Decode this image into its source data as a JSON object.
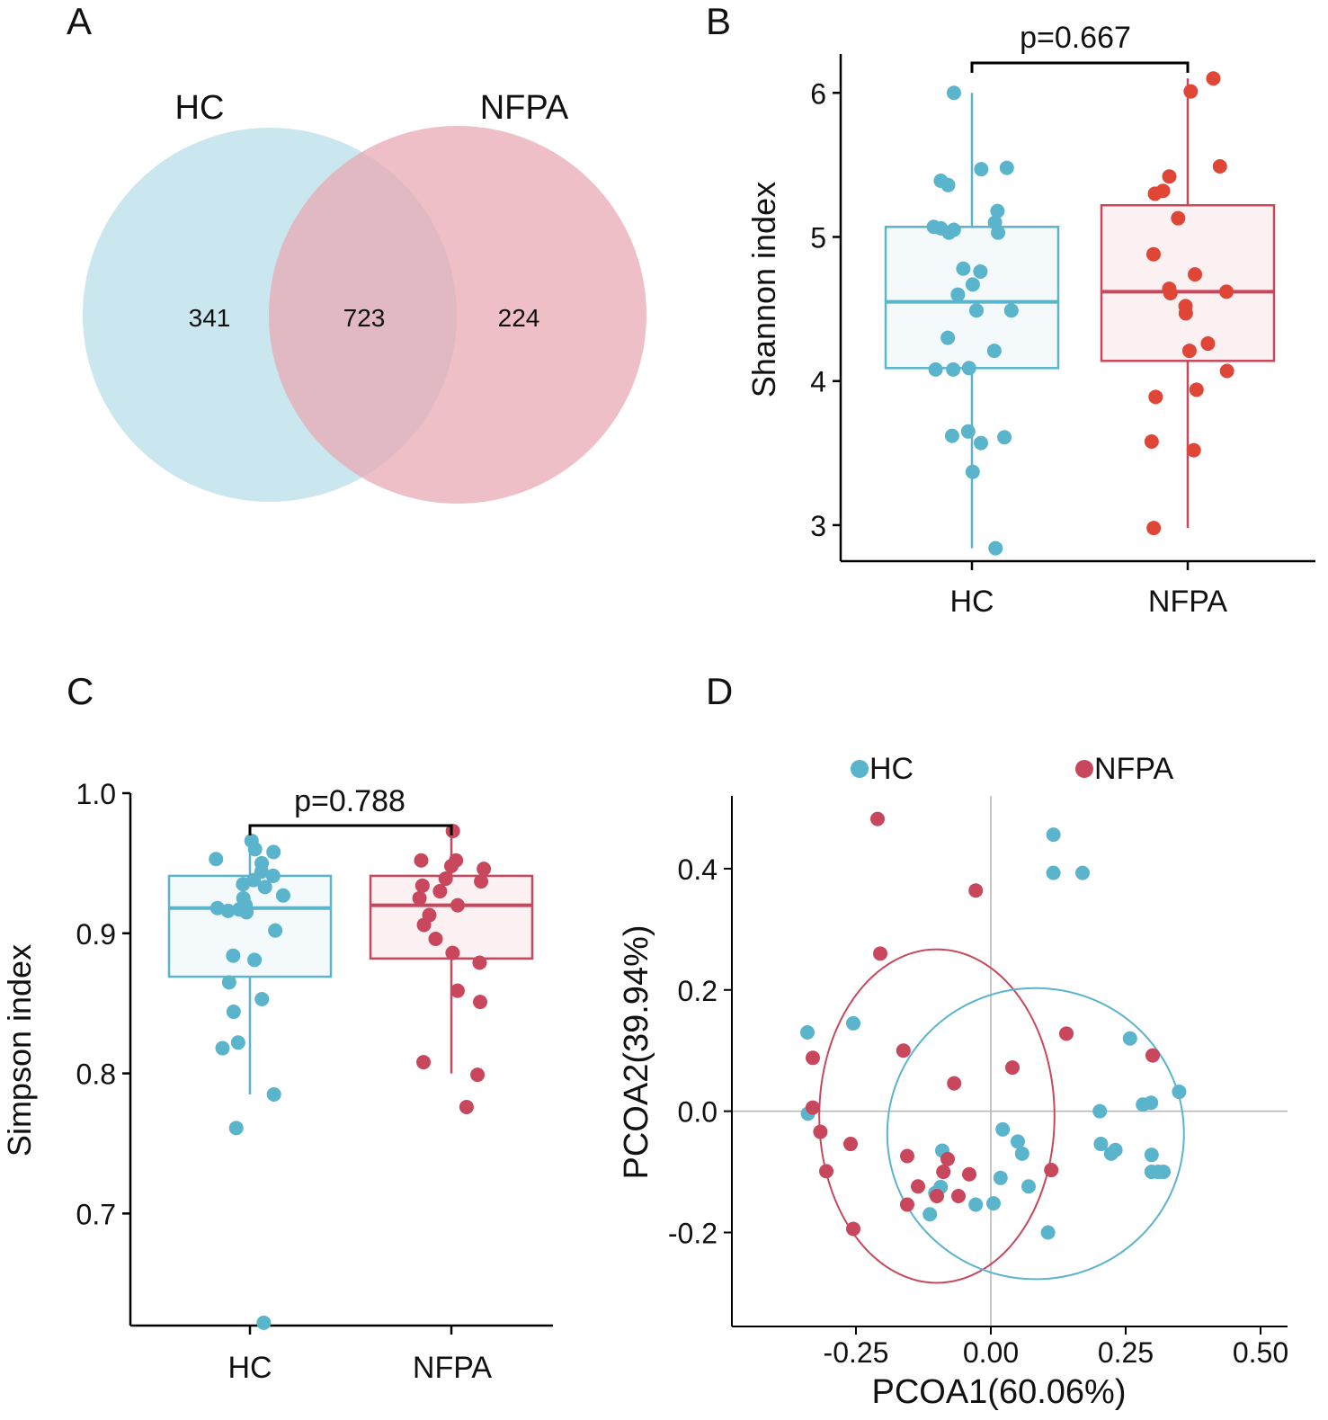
{
  "colors": {
    "hc": "#5ab4cb",
    "hc_fill": "#add8e6",
    "nfpa": "#c8475c",
    "nfpa_dot": "#e04636",
    "nfpa_fill": "#e8a9b3",
    "box_fill_hc": "#f4f9fb",
    "box_fill_nfpa": "#fbf1f2",
    "axis": "#000000",
    "refline": "#b3b3b3"
  },
  "chart_data": [
    {
      "panel": "A",
      "type": "venn",
      "sets": [
        "HC",
        "NFPA"
      ],
      "regions": {
        "HC_only": "341",
        "intersection": "723",
        "NFPA_only": "224"
      }
    },
    {
      "panel": "B",
      "type": "boxplot",
      "categories": [
        "HC",
        "NFPA"
      ],
      "ylabel": "Shannon index",
      "xlabel": "",
      "ylim": [
        2.75,
        6.27
      ],
      "yticks": [
        3,
        4,
        5,
        6
      ],
      "significance": "p=0.667",
      "boxes": [
        {
          "q1": 4.09,
          "median": 4.55,
          "q3": 5.07,
          "min": 2.84,
          "max": 6.0
        },
        {
          "q1": 4.14,
          "median": 4.62,
          "q3": 5.22,
          "min": 2.98,
          "max": 6.1
        }
      ],
      "points": [
        [
          6.0,
          5.48,
          5.47,
          5.39,
          5.36,
          5.18,
          5.1,
          5.07,
          5.06,
          5.05,
          5.03,
          5.03,
          4.78,
          4.76,
          4.67,
          4.6,
          4.49,
          4.49,
          4.3,
          4.21,
          4.09,
          4.08,
          4.08,
          3.65,
          3.62,
          3.61,
          3.57,
          3.37,
          2.84
        ],
        [
          6.1,
          6.01,
          5.49,
          5.42,
          5.32,
          5.3,
          5.13,
          4.88,
          4.74,
          4.64,
          4.62,
          4.61,
          4.52,
          4.47,
          4.26,
          4.21,
          4.07,
          3.94,
          3.89,
          3.58,
          3.52,
          2.98
        ]
      ]
    },
    {
      "panel": "C",
      "type": "boxplot",
      "categories": [
        "HC",
        "NFPA"
      ],
      "ylabel": "Simpson index",
      "xlabel": "",
      "ylim": [
        0.62,
        1.0
      ],
      "yticks": [
        0.7,
        0.8,
        0.9,
        1.0
      ],
      "significance": "p=0.788",
      "boxes": [
        {
          "q1": 0.869,
          "median": 0.918,
          "q3": 0.941,
          "min": 0.785,
          "max": 0.966
        },
        {
          "q1": 0.882,
          "median": 0.92,
          "q3": 0.941,
          "min": 0.8,
          "max": 0.973
        }
      ],
      "points": [
        [
          0.966,
          0.96,
          0.958,
          0.953,
          0.95,
          0.944,
          0.941,
          0.938,
          0.935,
          0.933,
          0.927,
          0.925,
          0.92,
          0.919,
          0.918,
          0.917,
          0.916,
          0.915,
          0.902,
          0.884,
          0.881,
          0.865,
          0.853,
          0.844,
          0.822,
          0.818,
          0.785,
          0.761,
          0.622
        ],
        [
          0.973,
          0.952,
          0.952,
          0.948,
          0.946,
          0.939,
          0.937,
          0.934,
          0.93,
          0.925,
          0.92,
          0.913,
          0.906,
          0.896,
          0.886,
          0.879,
          0.859,
          0.851,
          0.808,
          0.799,
          0.776
        ]
      ]
    },
    {
      "panel": "D",
      "type": "scatter",
      "xlabel": "PCOA1(60.06%)",
      "ylabel": "PCOA2(39.94%)",
      "xlim": [
        -0.48,
        0.55
      ],
      "ylim": [
        -0.355,
        0.52
      ],
      "xticks": [
        -0.25,
        0.0,
        0.25,
        0.5
      ],
      "xtick_labels": [
        "-0.25",
        "0.00",
        "0.25",
        "0.50"
      ],
      "yticks": [
        -0.2,
        0.0,
        0.2,
        0.4
      ],
      "ytick_labels": [
        "-0.2",
        "0.0",
        "0.2",
        "0.4"
      ],
      "series": [
        {
          "name": "HC",
          "points": [
            [
              0.116,
              0.456
            ],
            [
              0.116,
              0.393
            ],
            [
              0.17,
              0.393
            ],
            [
              -0.255,
              0.145
            ],
            [
              -0.34,
              0.13
            ],
            [
              0.258,
              0.12
            ],
            [
              0.349,
              0.032
            ],
            [
              0.297,
              0.014
            ],
            [
              0.282,
              0.011
            ],
            [
              0.202,
              0.0
            ],
            [
              -0.339,
              -0.004
            ],
            [
              0.022,
              -0.03
            ],
            [
              0.05,
              -0.05
            ],
            [
              0.204,
              -0.054
            ],
            [
              0.231,
              -0.064
            ],
            [
              0.223,
              -0.07
            ],
            [
              0.058,
              -0.07
            ],
            [
              -0.09,
              -0.065
            ],
            [
              0.298,
              -0.072
            ],
            [
              0.298,
              -0.1
            ],
            [
              0.31,
              -0.1
            ],
            [
              0.32,
              -0.1
            ],
            [
              0.018,
              -0.11
            ],
            [
              0.07,
              -0.124
            ],
            [
              -0.093,
              -0.125
            ],
            [
              -0.103,
              -0.135
            ],
            [
              -0.028,
              -0.154
            ],
            [
              0.005,
              -0.152
            ],
            [
              -0.113,
              -0.17
            ],
            [
              0.106,
              -0.2
            ]
          ]
        },
        {
          "name": "NFPA",
          "points": [
            [
              -0.21,
              0.482
            ],
            [
              -0.028,
              0.364
            ],
            [
              -0.205,
              0.26
            ],
            [
              0.14,
              0.128
            ],
            [
              -0.162,
              0.1
            ],
            [
              0.3,
              0.092
            ],
            [
              -0.33,
              0.088
            ],
            [
              0.04,
              0.072
            ],
            [
              -0.068,
              0.046
            ],
            [
              -0.33,
              0.006
            ],
            [
              -0.316,
              -0.034
            ],
            [
              -0.26,
              -0.054
            ],
            [
              -0.155,
              -0.074
            ],
            [
              -0.08,
              -0.079
            ],
            [
              -0.305,
              -0.099
            ],
            [
              0.112,
              -0.097
            ],
            [
              -0.088,
              -0.1
            ],
            [
              -0.04,
              -0.104
            ],
            [
              -0.135,
              -0.124
            ],
            [
              -0.1,
              -0.14
            ],
            [
              -0.06,
              -0.14
            ],
            [
              -0.155,
              -0.154
            ],
            [
              -0.255,
              -0.194
            ]
          ]
        }
      ],
      "ellipses": [
        {
          "group": "NFPA",
          "center": [
            -0.1,
            -0.008
          ],
          "rx": 0.218,
          "ry": 0.275
        },
        {
          "group": "HC",
          "center": [
            0.083,
            -0.037
          ],
          "rx": 0.275,
          "ry": 0.24
        }
      ]
    }
  ],
  "panel_labels": {
    "a": "A",
    "b": "B",
    "c": "C",
    "d": "D"
  }
}
